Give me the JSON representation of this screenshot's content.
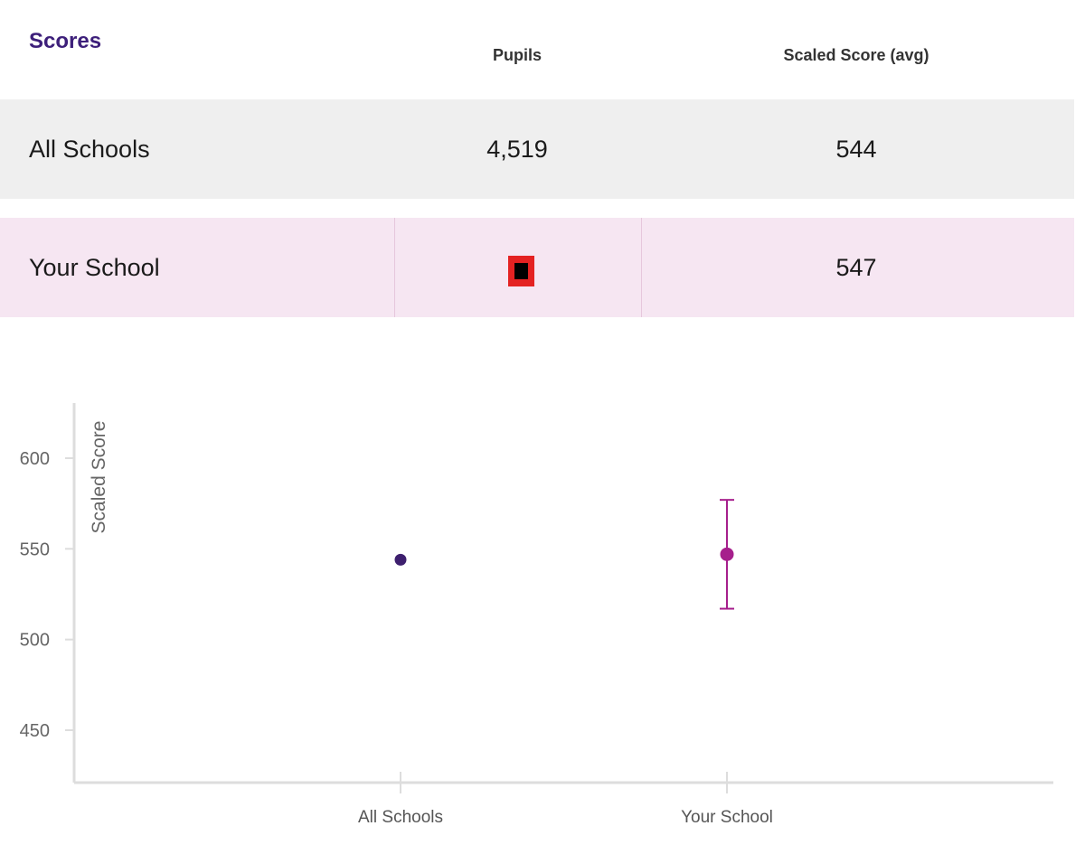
{
  "table": {
    "title": "Scores",
    "columns": [
      "Pupils",
      "Scaled Score (avg)"
    ],
    "rows": [
      {
        "label": "All Schools",
        "pupils": "4,519",
        "score": "544"
      },
      {
        "label": "Your School",
        "pupils": "",
        "score": "547",
        "pupils_suppressed": true
      }
    ]
  },
  "colors": {
    "title": "#3d1f7a",
    "all_schools": "#3d1f6e",
    "your_school": "#a61f8c",
    "row_all_bg": "#efefef",
    "row_your_bg": "#f6e6f2",
    "suppressed_marker": "#e42222"
  },
  "chart_data": {
    "type": "scatter",
    "ylabel": "Scaled Score",
    "xlabel": "",
    "categories": [
      "All Schools",
      "Your School"
    ],
    "ylim": [
      420,
      630
    ],
    "yticks": [
      450,
      500,
      550,
      600
    ],
    "grid": false,
    "points": [
      {
        "category": "All Schools",
        "value": 544
      },
      {
        "category": "Your School",
        "value": 547,
        "error_low": 517,
        "error_high": 577
      }
    ]
  }
}
